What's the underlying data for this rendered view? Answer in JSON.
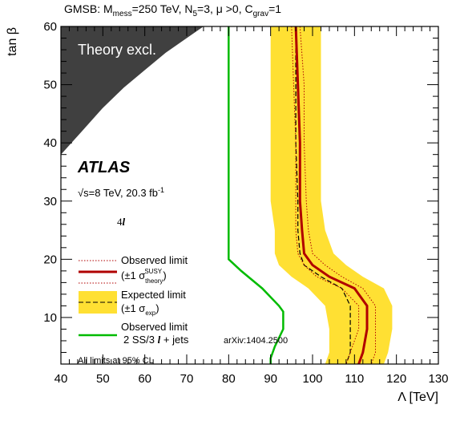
{
  "chart_data": {
    "type": "line",
    "title_parts": [
      "GMSB: M",
      "mess",
      "=250 TeV, N",
      "5",
      "=3, μ >0, C",
      "grav",
      "=1"
    ],
    "xlabel": "Λ [TeV]",
    "ylabel": "tan β",
    "xlim": [
      40,
      130
    ],
    "ylim": [
      2,
      60
    ],
    "xticks": [
      40,
      50,
      60,
      70,
      80,
      90,
      100,
      110,
      120,
      130
    ],
    "yticks": [
      10,
      20,
      30,
      40,
      50,
      60
    ],
    "grid": false,
    "legend_position": "bottom-left",
    "excluded_region": {
      "label": "Theory excl.",
      "color": "#404040",
      "boundary": [
        [
          40,
          38
        ],
        [
          45,
          42
        ],
        [
          50,
          46
        ],
        [
          55,
          49.5
        ],
        [
          60,
          52.5
        ],
        [
          65,
          55.5
        ],
        [
          70,
          58
        ],
        [
          74,
          60
        ]
      ]
    },
    "series": [
      {
        "name": "Observed limit",
        "color": "#b00000",
        "style": "solid",
        "points": [
          [
            96,
            60
          ],
          [
            96.5,
            50
          ],
          [
            97,
            40
          ],
          [
            97,
            30
          ],
          [
            97.5,
            25
          ],
          [
            98,
            21
          ],
          [
            100,
            19
          ],
          [
            104,
            17
          ],
          [
            110,
            15
          ],
          [
            113,
            12
          ],
          [
            113,
            8
          ],
          [
            112,
            4
          ],
          [
            111,
            2
          ]
        ]
      },
      {
        "name": "Observed limit theory upper (±1σ SUSY theory)",
        "color": "#b00000",
        "style": "dotted",
        "points": [
          [
            97,
            60
          ],
          [
            98,
            50
          ],
          [
            98,
            40
          ],
          [
            98.5,
            30
          ],
          [
            99,
            25
          ],
          [
            100,
            21
          ],
          [
            103,
            19
          ],
          [
            107,
            17
          ],
          [
            112,
            15
          ],
          [
            115,
            12
          ],
          [
            115,
            8
          ],
          [
            115,
            4
          ],
          [
            114,
            2
          ]
        ]
      },
      {
        "name": "Observed limit theory lower (±1σ SUSY theory)",
        "color": "#b00000",
        "style": "dotted",
        "points": [
          [
            95,
            60
          ],
          [
            95.5,
            50
          ],
          [
            96,
            40
          ],
          [
            96,
            30
          ],
          [
            96,
            25
          ],
          [
            96.5,
            21
          ],
          [
            98,
            19
          ],
          [
            101,
            17
          ],
          [
            107,
            15
          ],
          [
            111,
            12
          ],
          [
            111,
            8
          ],
          [
            109,
            4
          ],
          [
            108,
            2
          ]
        ]
      },
      {
        "name": "Expected limit",
        "color": "#000000",
        "style": "dashed",
        "points": [
          [
            96,
            60
          ],
          [
            96,
            50
          ],
          [
            96,
            40
          ],
          [
            96.5,
            30
          ],
          [
            96.5,
            25
          ],
          [
            97,
            21
          ],
          [
            98,
            19
          ],
          [
            102,
            17
          ],
          [
            107,
            15
          ],
          [
            109,
            12
          ],
          [
            109,
            8
          ],
          [
            109,
            4
          ],
          [
            108,
            2
          ]
        ]
      },
      {
        "name": "Observed limit 2 SS/3 l + jets",
        "color": "#00bb00",
        "style": "solid",
        "points": [
          [
            80,
            60
          ],
          [
            80,
            50
          ],
          [
            80,
            40
          ],
          [
            80,
            30
          ],
          [
            80,
            25
          ],
          [
            80,
            20
          ],
          [
            83,
            18
          ],
          [
            88,
            15
          ],
          [
            92,
            12
          ],
          [
            93,
            11
          ],
          [
            93,
            8
          ],
          [
            91,
            5
          ],
          [
            90,
            3
          ],
          [
            90,
            2
          ]
        ]
      }
    ],
    "band": {
      "name": "Expected limit (±1 σexp)",
      "color": "#ffe033",
      "upper": [
        [
          102,
          60
        ],
        [
          102,
          50
        ],
        [
          102,
          40
        ],
        [
          102,
          30
        ],
        [
          103,
          25
        ],
        [
          105,
          21
        ],
        [
          108,
          19
        ],
        [
          112,
          17
        ],
        [
          117,
          15
        ],
        [
          119,
          12
        ],
        [
          119,
          8
        ],
        [
          118,
          4
        ],
        [
          117,
          2
        ]
      ],
      "lower": [
        [
          90,
          60
        ],
        [
          90,
          50
        ],
        [
          90,
          40
        ],
        [
          90,
          30
        ],
        [
          91,
          25
        ],
        [
          91,
          21
        ],
        [
          92,
          19
        ],
        [
          95,
          17
        ],
        [
          99,
          15
        ],
        [
          103,
          12
        ],
        [
          104,
          8
        ],
        [
          104,
          4
        ],
        [
          103,
          2
        ]
      ]
    },
    "annotations": {
      "experiment": "ATLAS",
      "energy": "√s=8 TeV, 20.3 fb",
      "energy_sup": "-1",
      "channel": "4",
      "channel_italic": "l",
      "legend_observed": "Observed limit",
      "legend_observed_sub": "(±1 σ",
      "legend_observed_sup": "SUSY",
      "legend_observed_subsub": "theory",
      "legend_observed_close": ")",
      "legend_expected": "Expected limit",
      "legend_expected_sub": "(±1 σ",
      "legend_expected_subsub": "exp",
      "legend_expected_close": ")",
      "legend_green_1": "Observed limit",
      "legend_green_2": "2 SS/3",
      "legend_green_2_italic": "l",
      "legend_green_2_end": "+ jets",
      "legend_green_ref": "arXiv:1404.2500",
      "cl_note": "All limits at 95% CL"
    }
  }
}
